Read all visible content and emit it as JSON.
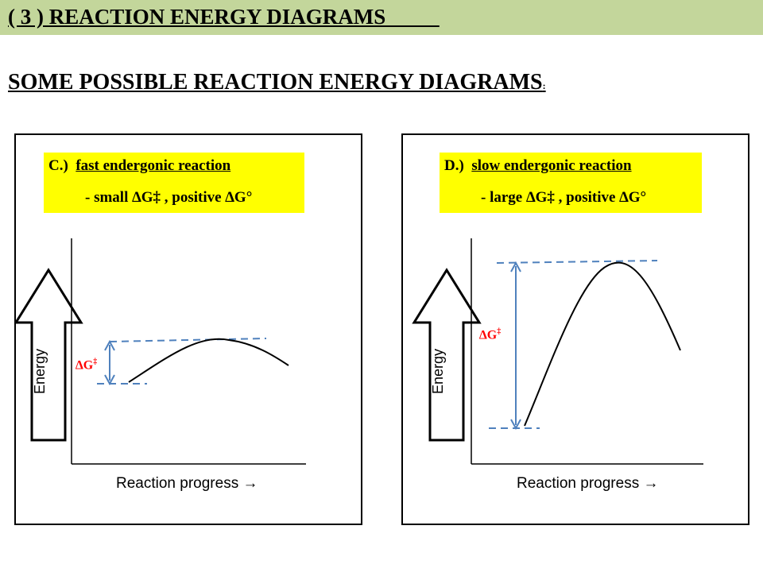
{
  "header": {
    "title": "( 3 ) REACTION ENERGY DIAGRAMS          "
  },
  "subtitle": {
    "text": "SOME POSSIBLE REACTION ENERGY DIAGRAMS",
    "colon": ":"
  },
  "panels": [
    {
      "id": "C",
      "label_letter": "C.)",
      "label_title": "fast endergonic reaction",
      "label_detail": "- small ∆G‡ , positive ∆G°",
      "energy_axis": "Energy",
      "progress_axis": "Reaction progress",
      "arrow_glyph": "→",
      "dg_symbol": "∆G",
      "dg_sup": "‡",
      "activation_energy": "small",
      "free_energy_change": "positive"
    },
    {
      "id": "D",
      "label_letter": "D.)",
      "label_title": "slow endergonic reaction",
      "label_detail": "- large ∆G‡ , positive ∆G°",
      "energy_axis": "Energy",
      "progress_axis": "Reaction progress",
      "arrow_glyph": "→",
      "dg_symbol": "∆G",
      "dg_sup": "‡",
      "activation_energy": "large",
      "free_energy_change": "positive"
    }
  ],
  "colors": {
    "header_bg": "#c3d69b",
    "label_bg": "#ffff00",
    "dg_text": "#ff0000",
    "dashed_line": "#4f81bd",
    "curve": "#000000"
  }
}
